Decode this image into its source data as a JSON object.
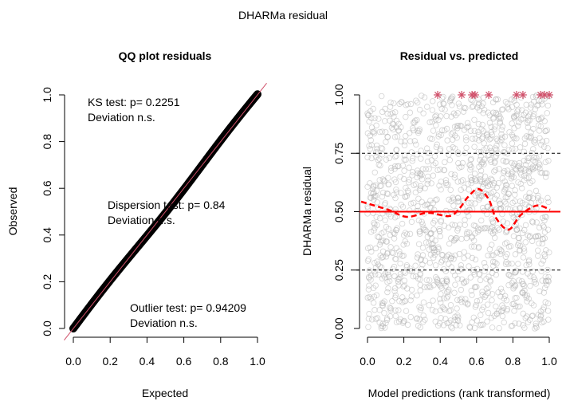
{
  "suptitle": "DHARMa residual",
  "chart_data": [
    {
      "type": "scatter",
      "title": "QQ plot residuals",
      "xlabel": "Expected",
      "ylabel": "Observed",
      "xlim": [
        0,
        1
      ],
      "ylim": [
        0,
        1
      ],
      "xticks": [
        "0.0",
        "0.2",
        "0.4",
        "0.6",
        "0.8",
        "1.0"
      ],
      "yticks": [
        "0.0",
        "0.2",
        "0.4",
        "0.6",
        "0.8",
        "1.0"
      ],
      "reference_line": {
        "slope": 1,
        "intercept": 0,
        "color": "#d0506a"
      },
      "points_color": "#000000",
      "annotations": [
        {
          "line1": "KS test: p= 0.2251",
          "line2": "Deviation  n.s."
        },
        {
          "line1": "Dispersion test: p= 0.84",
          "line2": "Deviation  n.s."
        },
        {
          "line1": "Outlier test: p= 0.94209",
          "line2": "Deviation  n.s."
        }
      ]
    },
    {
      "type": "scatter",
      "title": "Residual vs. predicted",
      "xlabel": "Model predictions (rank transformed)",
      "ylabel": "DHARMa residual",
      "xlim": [
        0,
        1
      ],
      "ylim": [
        0,
        1
      ],
      "xticks": [
        "0.0",
        "0.2",
        "0.4",
        "0.6",
        "0.8",
        "1.0"
      ],
      "yticks": [
        "0.00",
        "0.25",
        "0.50",
        "0.75",
        "1.00"
      ],
      "quantile_lines": [
        0.25,
        0.5,
        0.75
      ],
      "quantile_line_color": "#000000",
      "median_line_color": "#ff0000",
      "points_color": "#b0b0b0",
      "outlier_color": "#d0506a",
      "outliers": {
        "x": [
          0.386,
          0.518,
          0.575,
          0.592,
          0.667,
          0.82,
          0.855,
          0.952,
          0.974,
          1.0
        ],
        "y": [
          1,
          1,
          1,
          1,
          1,
          1,
          1,
          1,
          1,
          1
        ]
      },
      "smooth_curve": {
        "color": "#ff0000",
        "x": [
          -0.035,
          0.114,
          0.215,
          0.333,
          0.447,
          0.5,
          0.553,
          0.61,
          0.667,
          0.706,
          0.776,
          0.842,
          0.93,
          1.005
        ],
        "y": [
          0.543,
          0.508,
          0.478,
          0.495,
          0.481,
          0.508,
          0.563,
          0.597,
          0.553,
          0.474,
          0.423,
          0.485,
          0.526,
          0.509
        ]
      }
    }
  ]
}
